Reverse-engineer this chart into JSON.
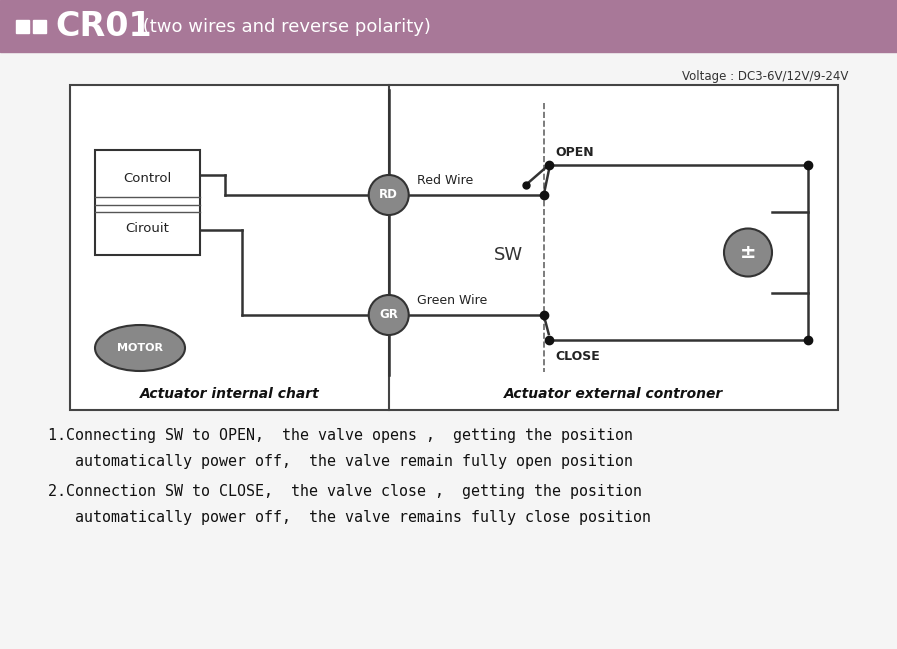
{
  "bg_color": "#f5f5f5",
  "header_color": "#a87898",
  "header_text": "CR01",
  "header_subtext": " (two wires and reverse polarity)",
  "voltage_text": "Voltage : DC3-6V/12V/9-24V",
  "diagram_border_color": "#444444",
  "label_internal": "Actuator internal chart",
  "label_external": "Actuator external controner",
  "motor_text": "MOTOR",
  "control_text1": "Control",
  "control_text2": "Cirouit",
  "rd_text": "RD",
  "gr_text": "GR",
  "red_wire_text": "Red Wire",
  "green_wire_text": "Green Wire",
  "sw_text": "SW",
  "open_text": "OPEN",
  "close_text": "CLOSE",
  "gray_color": "#888888",
  "line1_text1": "1.Connecting SW to OPEN,  the valve opens ,  getting the position",
  "line1_text2": "   automatically power off,  the valve remain fully open position",
  "line2_text1": "2.Connection SW to CLOSE,  the valve close ,  getting the position",
  "line2_text2": "   automatically power off,  the valve remains fully close position"
}
